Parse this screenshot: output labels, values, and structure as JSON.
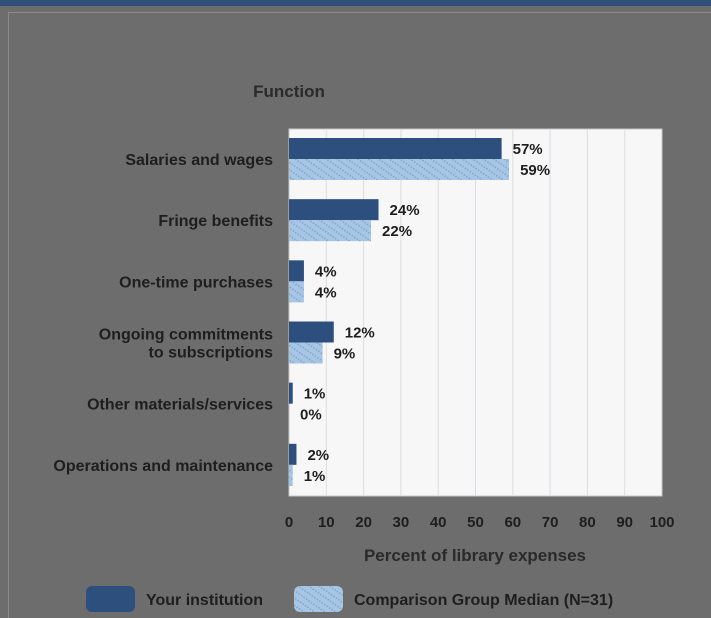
{
  "chart_data": {
    "type": "bar",
    "orientation": "horizontal",
    "category_header": "Function",
    "categories": [
      [
        "Salaries and wages"
      ],
      [
        "Fringe benefits"
      ],
      [
        "One-time purchases"
      ],
      [
        "Ongoing commitments",
        "to subscriptions"
      ],
      [
        "Other materials/services"
      ],
      [
        "Operations and maintenance"
      ]
    ],
    "series": [
      {
        "name": "Your institution",
        "color": "#2c4f7d",
        "values": [
          57,
          24,
          4,
          12,
          1,
          2
        ],
        "labels": [
          "57%",
          "24%",
          "4%",
          "12%",
          "1%",
          "2%"
        ]
      },
      {
        "name": "Comparison Group Median (N=31)",
        "color": "#a7c6e6",
        "pattern": "diagonal-hatch",
        "values": [
          59,
          22,
          4,
          9,
          0,
          1
        ],
        "labels": [
          "59%",
          "22%",
          "4%",
          "9%",
          "0%",
          "1%"
        ]
      }
    ],
    "xlabel": "Percent of library expenses",
    "xlim": [
      0,
      100
    ],
    "xticks": [
      "0",
      "10",
      "20",
      "30",
      "40",
      "50",
      "60",
      "70",
      "80",
      "90",
      "100"
    ],
    "grid": "vertical",
    "legend": "bottom"
  }
}
